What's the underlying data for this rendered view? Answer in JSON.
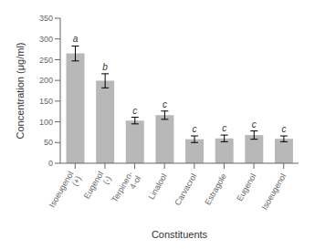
{
  "chart_data": {
    "type": "bar",
    "categories": [
      "Isoeugenol\n(+)",
      "Eugenol\n(-)",
      "Terpinen-\n4-ol",
      "Linalool",
      "Carvacrol",
      "Estragole",
      "Eugenol",
      "Isoeugenol"
    ],
    "values": [
      265,
      199,
      103,
      116,
      58,
      60,
      68,
      59
    ],
    "errors": [
      18,
      17,
      8,
      10,
      8,
      8,
      10,
      7
    ],
    "annotations": [
      "a",
      "b",
      "c",
      "c",
      "c",
      "c",
      "c",
      "c"
    ],
    "color": "#b8b8b8",
    "xlabel": "Constituents",
    "ylabel": "Concentration (μg/ml)",
    "ylim": [
      0,
      350
    ],
    "yticks": [
      0,
      50,
      100,
      150,
      200,
      250,
      300,
      350
    ],
    "grid": false
  }
}
